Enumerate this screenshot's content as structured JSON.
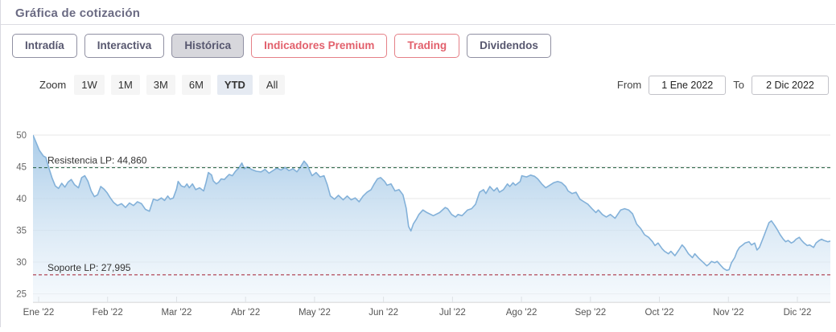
{
  "header": {
    "title": "Gráfica de cotización"
  },
  "tabs": [
    {
      "label": "Intradía",
      "style": "default",
      "selected": false
    },
    {
      "label": "Interactiva",
      "style": "default",
      "selected": false
    },
    {
      "label": "Histórica",
      "style": "default",
      "selected": true
    },
    {
      "label": "Indicadores Premium",
      "style": "premium",
      "selected": false
    },
    {
      "label": "Trading",
      "style": "premium",
      "selected": false
    },
    {
      "label": "Dividendos",
      "style": "default",
      "selected": false
    }
  ],
  "toolbar": {
    "zoom_label": "Zoom",
    "zoom_buttons": [
      {
        "label": "1W",
        "selected": false
      },
      {
        "label": "1M",
        "selected": false
      },
      {
        "label": "3M",
        "selected": false
      },
      {
        "label": "6M",
        "selected": false
      },
      {
        "label": "YTD",
        "selected": true
      },
      {
        "label": "All",
        "selected": false
      }
    ],
    "from_label": "From",
    "from_value": "1 Ene 2022",
    "to_label": "To",
    "to_value": "2 Dic 2022"
  },
  "chart_data": {
    "type": "area",
    "title": "",
    "xlabel": "",
    "ylabel": "",
    "x_tick_labels": [
      "Ene '22",
      "Feb '22",
      "Mar '22",
      "Abr '22",
      "May '22",
      "Jun '22",
      "Jul '22",
      "Ago '22",
      "Sep '22",
      "Oct '22",
      "Nov '22",
      "Dic '22"
    ],
    "y_ticks": [
      25,
      30,
      35,
      40,
      45,
      50
    ],
    "ylim": [
      25,
      51.5
    ],
    "grid": "horizontal-only",
    "legend": "none",
    "annotations": [
      {
        "label": "Resistencia LP: 44,860",
        "value": 44.86,
        "color": "#1f5c3d",
        "style": "dashed"
      },
      {
        "label": "Soporte LP: 27,995",
        "value": 27.995,
        "color": "#a31c2f",
        "style": "dashed"
      }
    ],
    "colors": {
      "line": "#83b1d9",
      "fill_top": "#a5c9e7",
      "fill_bottom": "#eef5fb"
    },
    "series": [
      {
        "name": "price",
        "points": [
          [
            0,
            50
          ],
          [
            0.004,
            48.8
          ],
          [
            0.008,
            47.6
          ],
          [
            0.013,
            46.7
          ],
          [
            0.016,
            46.5
          ],
          [
            0.02,
            44.8
          ],
          [
            0.024,
            43.2
          ],
          [
            0.028,
            42
          ],
          [
            0.032,
            41.6
          ],
          [
            0.036,
            42.4
          ],
          [
            0.04,
            41.8
          ],
          [
            0.044,
            42.6
          ],
          [
            0.048,
            43
          ],
          [
            0.052,
            42.2
          ],
          [
            0.057,
            41.7
          ],
          [
            0.061,
            43.3
          ],
          [
            0.065,
            43.6
          ],
          [
            0.069,
            42.7
          ],
          [
            0.073,
            41.2
          ],
          [
            0.077,
            40.3
          ],
          [
            0.081,
            40.6
          ],
          [
            0.085,
            41.9
          ],
          [
            0.089,
            41.5
          ],
          [
            0.093,
            40.9
          ],
          [
            0.097,
            40.1
          ],
          [
            0.101,
            39.4
          ],
          [
            0.106,
            38.9
          ],
          [
            0.111,
            39.2
          ],
          [
            0.116,
            38.6
          ],
          [
            0.121,
            39.3
          ],
          [
            0.126,
            38.9
          ],
          [
            0.131,
            39.5
          ],
          [
            0.136,
            39.2
          ],
          [
            0.141,
            38.3
          ],
          [
            0.146,
            38
          ],
          [
            0.151,
            39.9
          ],
          [
            0.156,
            39.7
          ],
          [
            0.161,
            40.1
          ],
          [
            0.165,
            39.7
          ],
          [
            0.169,
            40.4
          ],
          [
            0.172,
            39.9
          ],
          [
            0.176,
            40.1
          ],
          [
            0.18,
            41.5
          ],
          [
            0.182,
            42.7
          ],
          [
            0.186,
            42
          ],
          [
            0.19,
            41.8
          ],
          [
            0.193,
            42.3
          ],
          [
            0.196,
            41.7
          ],
          [
            0.2,
            42.3
          ],
          [
            0.204,
            41.4
          ],
          [
            0.209,
            41.7
          ],
          [
            0.214,
            41.2
          ],
          [
            0.217,
            42.5
          ],
          [
            0.22,
            44.1
          ],
          [
            0.224,
            43.7
          ],
          [
            0.226,
            42.8
          ],
          [
            0.23,
            42.3
          ],
          [
            0.233,
            42.6
          ],
          [
            0.236,
            43.1
          ],
          [
            0.24,
            43
          ],
          [
            0.243,
            43.4
          ],
          [
            0.246,
            43.8
          ],
          [
            0.25,
            43.6
          ],
          [
            0.254,
            44.3
          ],
          [
            0.258,
            44.8
          ],
          [
            0.262,
            45.6
          ],
          [
            0.265,
            44.7
          ],
          [
            0.269,
            45
          ],
          [
            0.274,
            44.6
          ],
          [
            0.28,
            44.3
          ],
          [
            0.286,
            44.2
          ],
          [
            0.291,
            44.6
          ],
          [
            0.296,
            44
          ],
          [
            0.301,
            44.4
          ],
          [
            0.306,
            44.8
          ],
          [
            0.311,
            44.5
          ],
          [
            0.316,
            44.9
          ],
          [
            0.321,
            44.4
          ],
          [
            0.326,
            44.7
          ],
          [
            0.331,
            44.2
          ],
          [
            0.335,
            44.9
          ],
          [
            0.34,
            45.9
          ],
          [
            0.344,
            45.3
          ],
          [
            0.347,
            44.4
          ],
          [
            0.35,
            43.6
          ],
          [
            0.355,
            44.1
          ],
          [
            0.36,
            43.4
          ],
          [
            0.365,
            43.6
          ],
          [
            0.369,
            42.2
          ],
          [
            0.373,
            40.4
          ],
          [
            0.378,
            39.9
          ],
          [
            0.383,
            40.5
          ],
          [
            0.389,
            39.8
          ],
          [
            0.394,
            40.4
          ],
          [
            0.399,
            39.8
          ],
          [
            0.404,
            40.1
          ],
          [
            0.409,
            39.5
          ],
          [
            0.414,
            40.4
          ],
          [
            0.419,
            41
          ],
          [
            0.424,
            41.4
          ],
          [
            0.428,
            42.3
          ],
          [
            0.432,
            43.1
          ],
          [
            0.436,
            43.3
          ],
          [
            0.441,
            42.7
          ],
          [
            0.444,
            42.1
          ],
          [
            0.449,
            42.3
          ],
          [
            0.454,
            41.2
          ],
          [
            0.459,
            41.4
          ],
          [
            0.464,
            40.6
          ],
          [
            0.468,
            38.5
          ],
          [
            0.471,
            35.6
          ],
          [
            0.474,
            34.9
          ],
          [
            0.477,
            36
          ],
          [
            0.481,
            36.8
          ],
          [
            0.484,
            37.5
          ],
          [
            0.489,
            38.2
          ],
          [
            0.494,
            37.8
          ],
          [
            0.502,
            37.3
          ],
          [
            0.51,
            37.8
          ],
          [
            0.517,
            38.6
          ],
          [
            0.52,
            38.4
          ],
          [
            0.525,
            37.5
          ],
          [
            0.53,
            37.1
          ],
          [
            0.533,
            37.5
          ],
          [
            0.538,
            37.3
          ],
          [
            0.545,
            38.2
          ],
          [
            0.55,
            38.4
          ],
          [
            0.555,
            39.1
          ],
          [
            0.56,
            41
          ],
          [
            0.565,
            41.4
          ],
          [
            0.568,
            40.8
          ],
          [
            0.573,
            41.9
          ],
          [
            0.578,
            41.2
          ],
          [
            0.582,
            41.7
          ],
          [
            0.585,
            41
          ],
          [
            0.59,
            41.4
          ],
          [
            0.595,
            42.3
          ],
          [
            0.598,
            41.9
          ],
          [
            0.602,
            42.5
          ],
          [
            0.605,
            42.1
          ],
          [
            0.611,
            42.7
          ],
          [
            0.613,
            43.6
          ],
          [
            0.619,
            43.4
          ],
          [
            0.624,
            43.7
          ],
          [
            0.629,
            43.5
          ],
          [
            0.633,
            43.1
          ],
          [
            0.638,
            42.3
          ],
          [
            0.643,
            41.7
          ],
          [
            0.648,
            42.1
          ],
          [
            0.653,
            42.5
          ],
          [
            0.658,
            42.7
          ],
          [
            0.663,
            42.5
          ],
          [
            0.668,
            41.9
          ],
          [
            0.671,
            41.2
          ],
          [
            0.676,
            40.8
          ],
          [
            0.681,
            41
          ],
          [
            0.686,
            39.9
          ],
          [
            0.691,
            39.5
          ],
          [
            0.696,
            39.1
          ],
          [
            0.701,
            38.4
          ],
          [
            0.706,
            37.8
          ],
          [
            0.709,
            38.2
          ],
          [
            0.714,
            37.5
          ],
          [
            0.719,
            37.1
          ],
          [
            0.724,
            37.5
          ],
          [
            0.73,
            36.9
          ],
          [
            0.737,
            38.2
          ],
          [
            0.742,
            38.4
          ],
          [
            0.747,
            38.2
          ],
          [
            0.752,
            37.6
          ],
          [
            0.757,
            36
          ],
          [
            0.762,
            35.3
          ],
          [
            0.767,
            34.3
          ],
          [
            0.772,
            33.9
          ],
          [
            0.777,
            33.2
          ],
          [
            0.78,
            32.6
          ],
          [
            0.784,
            33
          ],
          [
            0.789,
            32.1
          ],
          [
            0.792,
            31.7
          ],
          [
            0.797,
            31.3
          ],
          [
            0.8,
            31.7
          ],
          [
            0.805,
            31
          ],
          [
            0.81,
            31.9
          ],
          [
            0.814,
            32.7
          ],
          [
            0.817,
            32.3
          ],
          [
            0.822,
            31.3
          ],
          [
            0.827,
            30.7
          ],
          [
            0.83,
            31.3
          ],
          [
            0.835,
            30.6
          ],
          [
            0.841,
            29.9
          ],
          [
            0.845,
            29.4
          ],
          [
            0.848,
            29.7
          ],
          [
            0.851,
            30.1
          ],
          [
            0.855,
            29.9
          ],
          [
            0.858,
            30.1
          ],
          [
            0.863,
            29.4
          ],
          [
            0.866,
            29
          ],
          [
            0.87,
            28.7
          ],
          [
            0.873,
            28.8
          ],
          [
            0.876,
            29.9
          ],
          [
            0.88,
            30.7
          ],
          [
            0.883,
            31.7
          ],
          [
            0.886,
            32.3
          ],
          [
            0.89,
            32.7
          ],
          [
            0.893,
            33
          ],
          [
            0.898,
            33.2
          ],
          [
            0.901,
            32.7
          ],
          [
            0.905,
            33
          ],
          [
            0.908,
            31.9
          ],
          [
            0.911,
            32.3
          ],
          [
            0.916,
            33.9
          ],
          [
            0.92,
            35.2
          ],
          [
            0.923,
            36.2
          ],
          [
            0.926,
            36.5
          ],
          [
            0.93,
            35.8
          ],
          [
            0.933,
            35.2
          ],
          [
            0.937,
            34.3
          ],
          [
            0.941,
            33.6
          ],
          [
            0.944,
            33.2
          ],
          [
            0.947,
            33.4
          ],
          [
            0.951,
            33
          ],
          [
            0.954,
            33.2
          ],
          [
            0.957,
            33.6
          ],
          [
            0.961,
            33.9
          ],
          [
            0.964,
            33.4
          ],
          [
            0.967,
            33
          ],
          [
            0.971,
            32.6
          ],
          [
            0.974,
            32.7
          ],
          [
            0.979,
            32.3
          ],
          [
            0.982,
            33
          ],
          [
            0.986,
            33.4
          ],
          [
            0.989,
            33.6
          ],
          [
            0.992,
            33.4
          ],
          [
            0.997,
            33.2
          ],
          [
            1,
            33.3
          ]
        ]
      }
    ]
  }
}
